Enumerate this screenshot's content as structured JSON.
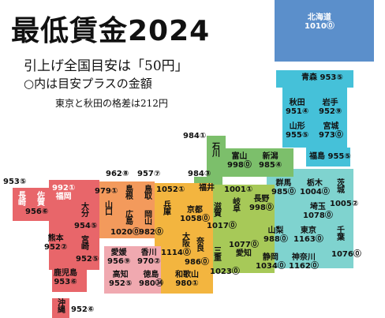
{
  "title": "最低賃金2024",
  "subtitle1": "引上げ全国目安は「50円」",
  "subtitle2": "○内は目安プラスの金額",
  "note": "東京と秋田の格差は212円",
  "colors": {
    "hokkaido": "#5b8fcb",
    "tohoku": "#45c1d9",
    "kanto": "#7fd3cf",
    "chubu": "#a7c958",
    "hokuriku": "#7cbf6b",
    "kinki": "#f3b53f",
    "chugoku": "#f39a5c",
    "shikoku": "#f0a9b0",
    "kyushu": "#e8666a"
  },
  "prefectures": [
    {
      "id": "hokkaido",
      "name": "北海道",
      "wage": "1010",
      "plus": "⓪",
      "vertical": false
    },
    {
      "id": "aomori",
      "name": "青森",
      "wage": "953",
      "plus": "⑤",
      "vertical": false
    },
    {
      "id": "akita",
      "name": "秋田",
      "wage": "951",
      "plus": "④",
      "vertical": false
    },
    {
      "id": "iwate",
      "name": "岩手",
      "wage": "952",
      "plus": "⑨",
      "vertical": false
    },
    {
      "id": "yamagata",
      "name": "山形",
      "wage": "955",
      "plus": "⑤",
      "vertical": false
    },
    {
      "id": "miyagi",
      "name": "宮城",
      "wage": "973",
      "plus": "⓪",
      "vertical": false
    },
    {
      "id": "fukushima",
      "name": "福島",
      "wage": "955",
      "plus": "⑤",
      "vertical": false
    },
    {
      "id": "ishikawa",
      "name": "石川",
      "wage": "984",
      "plus": "①",
      "vertical": true
    },
    {
      "id": "toyama",
      "name": "富山",
      "wage": "998",
      "plus": "⓪",
      "vertical": false
    },
    {
      "id": "niigata",
      "name": "新潟",
      "wage": "985",
      "plus": "④",
      "vertical": false
    },
    {
      "id": "fukui",
      "name": "福井",
      "wage": "984",
      "plus": "③",
      "vertical": false
    },
    {
      "id": "gifu",
      "name": "岐阜",
      "wage": "1001",
      "plus": "①",
      "vertical": true
    },
    {
      "id": "nagano",
      "name": "長野",
      "wage": "998",
      "plus": "⓪",
      "vertical": false
    },
    {
      "id": "gunma",
      "name": "群馬",
      "wage": "985",
      "plus": "⓪",
      "vertical": false
    },
    {
      "id": "tochigi",
      "name": "栃木",
      "wage": "1004",
      "plus": "⓪",
      "vertical": false
    },
    {
      "id": "ibaraki",
      "name": "茨城",
      "wage": "1005",
      "plus": "②",
      "vertical": true
    },
    {
      "id": "saitama",
      "name": "埼玉",
      "wage": "1078",
      "plus": "⓪",
      "vertical": false
    },
    {
      "id": "yamanashi",
      "name": "山梨",
      "wage": "988",
      "plus": "⓪",
      "vertical": false
    },
    {
      "id": "tokyo",
      "name": "東京",
      "wage": "1163",
      "plus": "⓪",
      "vertical": false
    },
    {
      "id": "chiba",
      "name": "千葉",
      "wage": "1076",
      "plus": "⓪",
      "vertical": true
    },
    {
      "id": "kanagawa",
      "name": "神奈川",
      "wage": "1162",
      "plus": "⓪",
      "vertical": false
    },
    {
      "id": "shizuoka",
      "name": "静岡",
      "wage": "1034",
      "plus": "⓪",
      "vertical": false
    },
    {
      "id": "aichi",
      "name": "愛知",
      "wage": "1077",
      "plus": "⓪",
      "vertical": false
    },
    {
      "id": "shiga",
      "name": "滋賀",
      "wage": "1017",
      "plus": "⓪",
      "vertical": true
    },
    {
      "id": "mie",
      "name": "三重",
      "wage": "1023",
      "plus": "⓪",
      "vertical": true
    },
    {
      "id": "kyoto",
      "name": "京都",
      "wage": "1058",
      "plus": "⓪",
      "vertical": false
    },
    {
      "id": "hyogo",
      "name": "兵庫",
      "wage": "1052",
      "plus": "①",
      "vertical": true
    },
    {
      "id": "osaka",
      "name": "大阪",
      "wage": "1114",
      "plus": "⓪",
      "vertical": true
    },
    {
      "id": "nara",
      "name": "奈良",
      "wage": "986",
      "plus": "⓪",
      "vertical": true
    },
    {
      "id": "wakayama",
      "name": "和歌山",
      "wage": "980",
      "plus": "①",
      "vertical": false
    },
    {
      "id": "tottori",
      "name": "鳥取",
      "wage": "957",
      "plus": "⑦",
      "vertical": true
    },
    {
      "id": "shimane",
      "name": "島根",
      "wage": "962",
      "plus": "⑧",
      "vertical": true
    },
    {
      "id": "okayama",
      "name": "岡山",
      "wage": "982",
      "plus": "⓪",
      "vertical": true
    },
    {
      "id": "hiroshima",
      "name": "広島",
      "wage": "1020",
      "plus": "⓪",
      "vertical": true
    },
    {
      "id": "yamaguchi",
      "name": "山口",
      "wage": "979",
      "plus": "①",
      "vertical": true
    },
    {
      "id": "kagawa",
      "name": "香川",
      "wage": "970",
      "plus": "②",
      "vertical": false
    },
    {
      "id": "ehime",
      "name": "愛媛",
      "wage": "956",
      "plus": "⑨",
      "vertical": false
    },
    {
      "id": "tokushima",
      "name": "徳島",
      "wage": "980",
      "plus": "㉞",
      "vertical": false
    },
    {
      "id": "kochi",
      "name": "高知",
      "wage": "952",
      "plus": "⑤",
      "vertical": false
    },
    {
      "id": "fukuoka",
      "name": "福岡",
      "wage": "992",
      "plus": "①",
      "vertical": false
    },
    {
      "id": "saga",
      "name": "佐賀",
      "wage": "956",
      "plus": "⑥",
      "vertical": true
    },
    {
      "id": "nagasaki",
      "name": "長崎",
      "wage": "953",
      "plus": "⑤",
      "vertical": true
    },
    {
      "id": "oita",
      "name": "大分",
      "wage": "954",
      "plus": "⑤",
      "vertical": true
    },
    {
      "id": "kumamoto",
      "name": "熊本",
      "wage": "952",
      "plus": "②",
      "vertical": false
    },
    {
      "id": "miyazaki",
      "name": "宮崎",
      "wage": "952",
      "plus": "⑤",
      "vertical": true
    },
    {
      "id": "kagoshima",
      "name": "鹿児島",
      "wage": "953",
      "plus": "⑥",
      "vertical": false
    },
    {
      "id": "okinawa",
      "name": "沖縄",
      "wage": "952",
      "plus": "⑥",
      "vertical": true
    }
  ]
}
